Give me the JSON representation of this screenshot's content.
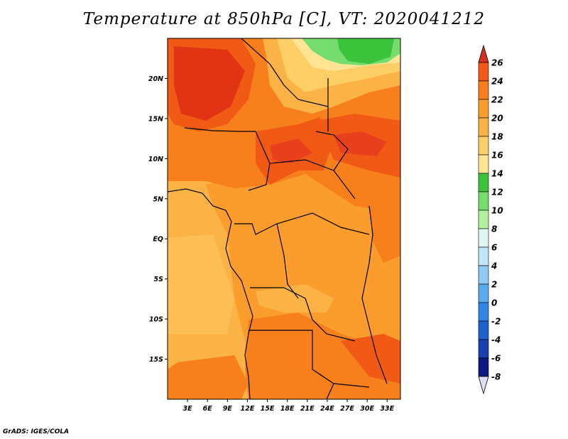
{
  "title": "Temperature at 850hPa [C], VT: 2020041212",
  "credit": "GrADS: IGES/COLA",
  "map": {
    "lon_range": [
      0,
      35
    ],
    "lat_range": [
      -20,
      25
    ],
    "lat_ticks": [
      {
        "value": 20,
        "label": "20N"
      },
      {
        "value": 15,
        "label": "15N"
      },
      {
        "value": 10,
        "label": "10N"
      },
      {
        "value": 5,
        "label": "5N"
      },
      {
        "value": 0,
        "label": "EQ"
      },
      {
        "value": -5,
        "label": "5S"
      },
      {
        "value": -10,
        "label": "10S"
      },
      {
        "value": -15,
        "label": "15S"
      }
    ],
    "lon_ticks": [
      {
        "value": 3,
        "label": "3E"
      },
      {
        "value": 6,
        "label": "6E"
      },
      {
        "value": 9,
        "label": "9E"
      },
      {
        "value": 12,
        "label": "12E"
      },
      {
        "value": 15,
        "label": "15E"
      },
      {
        "value": 18,
        "label": "18E"
      },
      {
        "value": 21,
        "label": "21E"
      },
      {
        "value": 24,
        "label": "24E"
      },
      {
        "value": 27,
        "label": "27E"
      },
      {
        "value": 30,
        "label": "30E"
      },
      {
        "value": 33,
        "label": "33E"
      }
    ]
  },
  "colorbar": {
    "labels": [
      "26",
      "24",
      "22",
      "20",
      "18",
      "16",
      "14",
      "12",
      "10",
      "8",
      "6",
      "4",
      "2",
      "0",
      "-2",
      "-4",
      "-6",
      "-8"
    ],
    "colors": [
      "#e8401c",
      "#f05a14",
      "#f77f1c",
      "#fb9d2c",
      "#fcb345",
      "#fdcd66",
      "#fee493",
      "#3bc33b",
      "#74dd6e",
      "#b2ef9d",
      "#dff7f3",
      "#bfe6fb",
      "#8fc9f6",
      "#5aaaf0",
      "#2f86e6",
      "#1c61cc",
      "#1a3fb0",
      "#0c1980"
    ],
    "top_triangle_color": "#d7301f",
    "bottom_triangle_color": "#dcdcf5"
  }
}
